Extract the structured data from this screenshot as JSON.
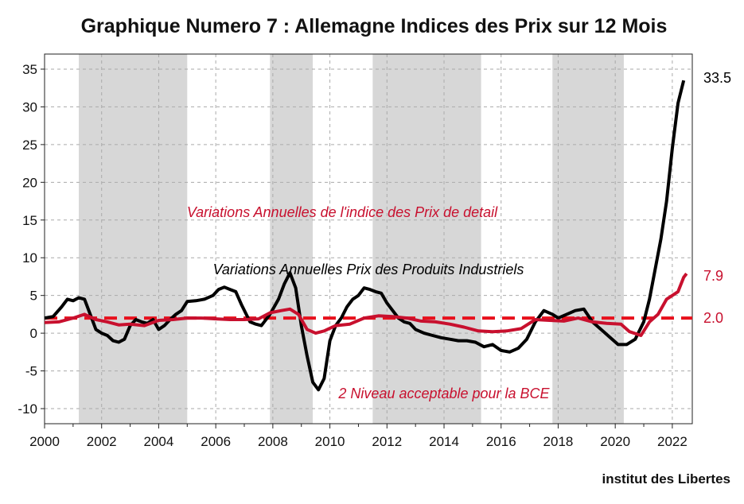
{
  "chart_data": {
    "type": "line",
    "title": "Graphique Numero 7 : Allemagne Indices des Prix sur 12 Mois",
    "credit": "institut des Libertes",
    "xlim": [
      2000,
      2022.7
    ],
    "ylim": [
      -12,
      37
    ],
    "x_ticks": [
      "2000",
      "2002",
      "2004",
      "2006",
      "2008",
      "2010",
      "2012",
      "2014",
      "2016",
      "2018",
      "2020",
      "2022"
    ],
    "y_ticks": [
      "35",
      "30",
      "25",
      "20",
      "15",
      "10",
      "5",
      "0",
      "-5",
      "-10"
    ],
    "grid": true,
    "shaded_periods": [
      [
        2001.2,
        2005.0
      ],
      [
        2007.9,
        2009.4
      ],
      [
        2011.5,
        2015.3
      ],
      [
        2017.8,
        2020.3
      ]
    ],
    "series": [
      {
        "name": "Variations Annuelles Prix des Produits Industriels",
        "color": "#000000",
        "end_label": "33.5",
        "points": [
          [
            2000.0,
            2.0
          ],
          [
            2000.3,
            2.2
          ],
          [
            2000.6,
            3.5
          ],
          [
            2000.8,
            4.5
          ],
          [
            2001.0,
            4.3
          ],
          [
            2001.2,
            4.7
          ],
          [
            2001.4,
            4.5
          ],
          [
            2001.6,
            2.5
          ],
          [
            2001.8,
            0.5
          ],
          [
            2002.0,
            0.0
          ],
          [
            2002.2,
            -0.3
          ],
          [
            2002.4,
            -1.0
          ],
          [
            2002.6,
            -1.2
          ],
          [
            2002.8,
            -0.8
          ],
          [
            2003.0,
            1.0
          ],
          [
            2003.2,
            1.8
          ],
          [
            2003.4,
            1.5
          ],
          [
            2003.6,
            1.3
          ],
          [
            2003.8,
            1.8
          ],
          [
            2004.0,
            0.5
          ],
          [
            2004.2,
            1.0
          ],
          [
            2004.4,
            1.8
          ],
          [
            2004.6,
            2.5
          ],
          [
            2004.8,
            3.0
          ],
          [
            2005.0,
            4.2
          ],
          [
            2005.3,
            4.3
          ],
          [
            2005.6,
            4.5
          ],
          [
            2005.9,
            5.0
          ],
          [
            2006.1,
            5.8
          ],
          [
            2006.3,
            6.1
          ],
          [
            2006.5,
            5.8
          ],
          [
            2006.7,
            5.5
          ],
          [
            2006.9,
            3.8
          ],
          [
            2007.2,
            1.5
          ],
          [
            2007.4,
            1.2
          ],
          [
            2007.6,
            1.0
          ],
          [
            2007.9,
            2.5
          ],
          [
            2008.2,
            4.5
          ],
          [
            2008.4,
            6.5
          ],
          [
            2008.6,
            8.0
          ],
          [
            2008.8,
            6.0
          ],
          [
            2009.0,
            1.0
          ],
          [
            2009.2,
            -3.0
          ],
          [
            2009.4,
            -6.5
          ],
          [
            2009.6,
            -7.5
          ],
          [
            2009.8,
            -6.0
          ],
          [
            2010.0,
            -1.0
          ],
          [
            2010.2,
            1.0
          ],
          [
            2010.4,
            2.0
          ],
          [
            2010.6,
            3.5
          ],
          [
            2010.8,
            4.5
          ],
          [
            2011.0,
            5.0
          ],
          [
            2011.2,
            6.0
          ],
          [
            2011.4,
            5.8
          ],
          [
            2011.6,
            5.5
          ],
          [
            2011.8,
            5.3
          ],
          [
            2012.0,
            4.0
          ],
          [
            2012.2,
            3.0
          ],
          [
            2012.4,
            2.0
          ],
          [
            2012.6,
            1.5
          ],
          [
            2012.8,
            1.3
          ],
          [
            2013.0,
            0.5
          ],
          [
            2013.3,
            0.0
          ],
          [
            2013.6,
            -0.3
          ],
          [
            2013.9,
            -0.6
          ],
          [
            2014.2,
            -0.8
          ],
          [
            2014.5,
            -1.0
          ],
          [
            2014.8,
            -1.0
          ],
          [
            2015.1,
            -1.2
          ],
          [
            2015.4,
            -1.8
          ],
          [
            2015.7,
            -1.5
          ],
          [
            2016.0,
            -2.3
          ],
          [
            2016.3,
            -2.5
          ],
          [
            2016.6,
            -2.0
          ],
          [
            2016.9,
            -0.8
          ],
          [
            2017.2,
            1.5
          ],
          [
            2017.5,
            3.0
          ],
          [
            2017.8,
            2.5
          ],
          [
            2018.0,
            2.0
          ],
          [
            2018.3,
            2.5
          ],
          [
            2018.6,
            3.0
          ],
          [
            2018.9,
            3.2
          ],
          [
            2019.2,
            1.5
          ],
          [
            2019.5,
            0.5
          ],
          [
            2019.8,
            -0.5
          ],
          [
            2020.1,
            -1.5
          ],
          [
            2020.4,
            -1.5
          ],
          [
            2020.7,
            -0.8
          ],
          [
            2021.0,
            1.5
          ],
          [
            2021.2,
            4.5
          ],
          [
            2021.4,
            8.5
          ],
          [
            2021.6,
            12.5
          ],
          [
            2021.8,
            17.5
          ],
          [
            2022.0,
            24.5
          ],
          [
            2022.2,
            30.5
          ],
          [
            2022.4,
            33.5
          ]
        ]
      },
      {
        "name": "Variations Annuelles de l'indice des Prix de detail",
        "color": "#c8102e",
        "end_label": "7.9",
        "points": [
          [
            2000.0,
            1.4
          ],
          [
            2000.5,
            1.5
          ],
          [
            2001.0,
            2.0
          ],
          [
            2001.4,
            2.5
          ],
          [
            2001.8,
            1.8
          ],
          [
            2002.2,
            1.5
          ],
          [
            2002.6,
            1.1
          ],
          [
            2003.0,
            1.2
          ],
          [
            2003.5,
            1.0
          ],
          [
            2004.0,
            1.7
          ],
          [
            2004.5,
            1.8
          ],
          [
            2005.0,
            2.0
          ],
          [
            2005.5,
            2.0
          ],
          [
            2006.0,
            1.9
          ],
          [
            2006.5,
            1.8
          ],
          [
            2007.0,
            1.8
          ],
          [
            2007.5,
            1.9
          ],
          [
            2007.9,
            2.7
          ],
          [
            2008.3,
            3.0
          ],
          [
            2008.6,
            3.2
          ],
          [
            2008.9,
            2.5
          ],
          [
            2009.2,
            0.5
          ],
          [
            2009.5,
            0.0
          ],
          [
            2009.8,
            0.3
          ],
          [
            2010.2,
            1.0
          ],
          [
            2010.7,
            1.2
          ],
          [
            2011.2,
            2.0
          ],
          [
            2011.7,
            2.3
          ],
          [
            2012.2,
            2.2
          ],
          [
            2012.7,
            2.0
          ],
          [
            2013.2,
            1.6
          ],
          [
            2013.7,
            1.5
          ],
          [
            2014.2,
            1.2
          ],
          [
            2014.7,
            0.8
          ],
          [
            2015.2,
            0.3
          ],
          [
            2015.7,
            0.2
          ],
          [
            2016.2,
            0.3
          ],
          [
            2016.7,
            0.6
          ],
          [
            2017.2,
            1.8
          ],
          [
            2017.7,
            1.7
          ],
          [
            2018.2,
            1.6
          ],
          [
            2018.7,
            2.0
          ],
          [
            2019.2,
            1.5
          ],
          [
            2019.7,
            1.3
          ],
          [
            2020.2,
            1.2
          ],
          [
            2020.5,
            0.2
          ],
          [
            2020.9,
            -0.3
          ],
          [
            2021.2,
            1.5
          ],
          [
            2021.5,
            2.5
          ],
          [
            2021.8,
            4.5
          ],
          [
            2022.0,
            5.0
          ],
          [
            2022.2,
            5.5
          ],
          [
            2022.4,
            7.4
          ],
          [
            2022.5,
            7.9
          ]
        ]
      }
    ],
    "reference_line": {
      "value": 2.0,
      "color": "#e8101c",
      "label": "2 Niveau acceptable pour la BCE",
      "end_label": "2.0"
    },
    "annotations": [
      {
        "text": "Variations Annuelles de l'indice des Prix de detail",
        "color": "#c8102e"
      },
      {
        "text": "Variations Annuelles Prix des Produits Industriels",
        "color": "#000000"
      },
      {
        "text": "2 Niveau acceptable pour la BCE",
        "color": "#c8102e"
      }
    ]
  }
}
